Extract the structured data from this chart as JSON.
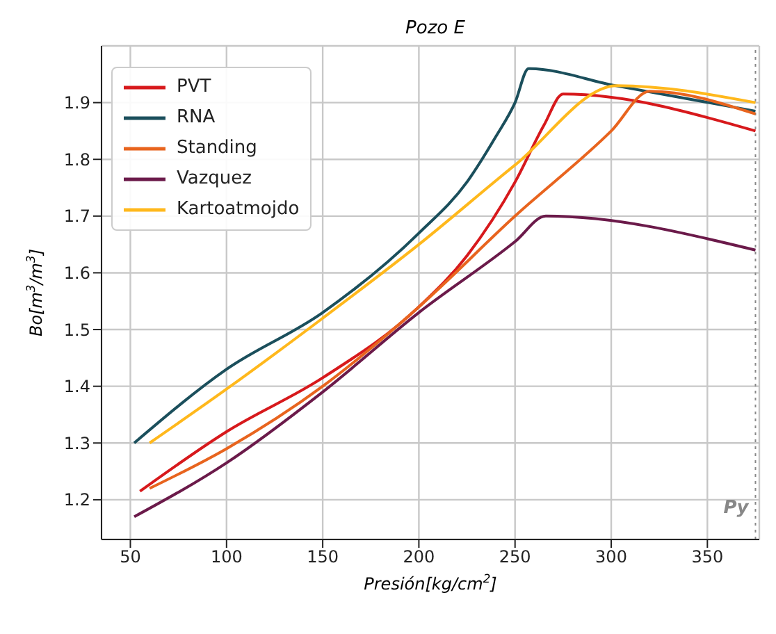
{
  "chart_data": {
    "type": "line",
    "title": "Pozo E",
    "xlabel": "Presión[kg/cm$^{2}$]",
    "ylabel": "Bo[m$^{3}$/m$^{3}$]",
    "xlim": [
      35,
      377
    ],
    "xticks": [
      50,
      100,
      150,
      200,
      250,
      300,
      350
    ],
    "ylim": [
      1.13,
      2.0
    ],
    "yticks": [
      1.2,
      1.3,
      1.4,
      1.5,
      1.6,
      1.7,
      1.8,
      1.9
    ],
    "grid": true,
    "legend": "top left",
    "marker": "none",
    "line_style": "solid",
    "ref_lines": [
      {
        "axis": "x",
        "value": 375,
        "label": "Py",
        "line_style": "dotted",
        "color": "#888888"
      }
    ],
    "series": [
      {
        "name": "PVT",
        "color": "#d7191c",
        "x": [
          55,
          100,
          150,
          200,
          225,
          250,
          265,
          275,
          375
        ],
        "values": [
          1.215,
          1.32,
          1.415,
          1.54,
          1.63,
          1.76,
          1.86,
          1.915,
          1.85
        ]
      },
      {
        "name": "RNA",
        "color": "#1b4f5c",
        "x": [
          52,
          100,
          150,
          200,
          225,
          240,
          250,
          257,
          302,
          375
        ],
        "values": [
          1.3,
          1.43,
          1.53,
          1.67,
          1.76,
          1.84,
          1.9,
          1.96,
          1.93,
          1.885
        ]
      },
      {
        "name": "Standing",
        "color": "#e8641e",
        "x": [
          60,
          100,
          150,
          200,
          250,
          300,
          320,
          375
        ],
        "values": [
          1.22,
          1.29,
          1.4,
          1.54,
          1.7,
          1.85,
          1.92,
          1.88
        ]
      },
      {
        "name": "Vazquez",
        "color": "#6b1a4a",
        "x": [
          52,
          100,
          150,
          200,
          250,
          266,
          375
        ],
        "values": [
          1.17,
          1.265,
          1.39,
          1.53,
          1.655,
          1.7,
          1.64
        ]
      },
      {
        "name": "Kartoatmojdo",
        "color": "#ffb81c",
        "x": [
          60,
          100,
          150,
          200,
          250,
          303,
          375
        ],
        "values": [
          1.3,
          1.395,
          1.52,
          1.65,
          1.79,
          1.93,
          1.9
        ]
      }
    ]
  }
}
